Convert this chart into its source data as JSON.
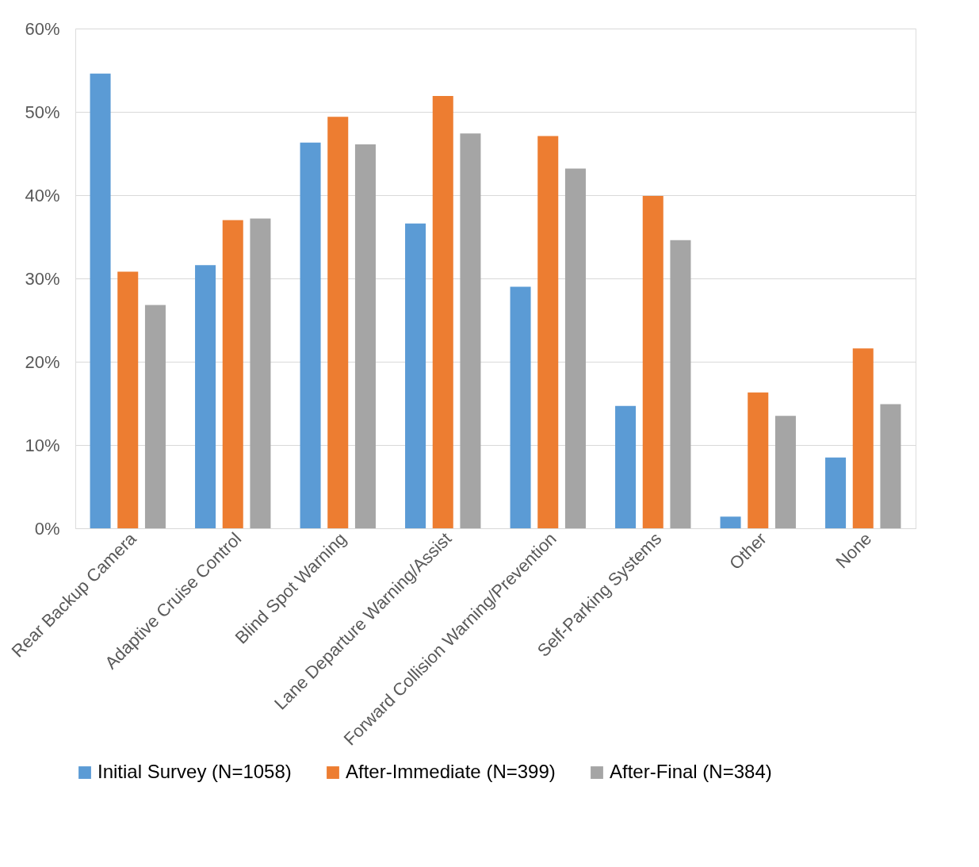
{
  "chart_data": {
    "type": "bar",
    "categories": [
      "Rear Backup Camera",
      "Adaptive Cruise Control",
      "Blind Spot Warning",
      "Lane Departure Warning/Assist",
      "Forward Collision Warning/Prevention",
      "Self-Parking Systems",
      "Other",
      "None"
    ],
    "series": [
      {
        "name": "Initial Survey (N=1058)",
        "color": "#5b9bd5",
        "values": [
          54.6,
          31.6,
          46.3,
          36.6,
          29.0,
          14.7,
          1.4,
          8.5
        ]
      },
      {
        "name": "After-Immediate (N=399)",
        "color": "#ed7d31",
        "values": [
          30.8,
          37.0,
          49.4,
          51.9,
          47.1,
          39.9,
          16.3,
          21.6
        ]
      },
      {
        "name": "After-Final (N=384)",
        "color": "#a5a5a5",
        "values": [
          26.8,
          37.2,
          46.1,
          47.4,
          43.2,
          34.6,
          13.5,
          14.9
        ]
      }
    ],
    "ylim": [
      0,
      60
    ],
    "yticks": [
      {
        "value": 0,
        "label": "0%"
      },
      {
        "value": 10,
        "label": "10%"
      },
      {
        "value": 20,
        "label": "20%"
      },
      {
        "value": 30,
        "label": "30%"
      },
      {
        "value": 40,
        "label": "40%"
      },
      {
        "value": 50,
        "label": "50%"
      },
      {
        "value": 60,
        "label": "60%"
      }
    ],
    "grid": "y",
    "legend": "bottom"
  }
}
